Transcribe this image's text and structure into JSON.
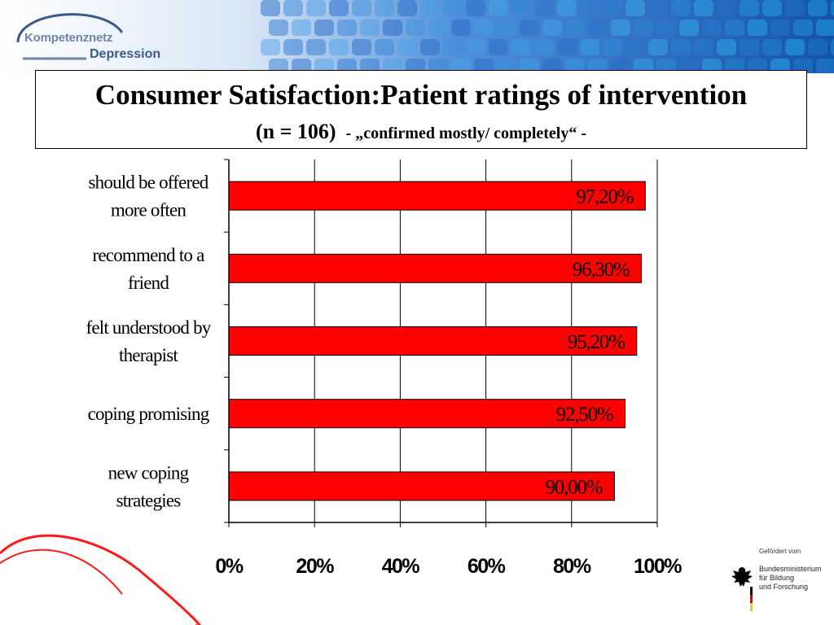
{
  "logo": {
    "line1": "Kompetenznetz",
    "line2": "Depression"
  },
  "title": {
    "main": "Consumer Satisfaction:Patient ratings of intervention",
    "n_label": "(n = 106)",
    "subtitle": "- „confirmed mostly/ completely“ -"
  },
  "footer": {
    "funded_by": "Gefördert vom",
    "ministry": "Bundesministerium\nfür Bildung\nund Forschung",
    "icon": "eagle-icon"
  },
  "colors": {
    "bar": "#ff0000",
    "bar_outline": "#000000",
    "banner": "#1e5fb0"
  },
  "chart_data": {
    "type": "bar",
    "orientation": "horizontal",
    "categories": [
      [
        "should be offered",
        "more often"
      ],
      [
        "recommend to a",
        "friend"
      ],
      [
        "felt understood by",
        "therapist"
      ],
      [
        "coping promising"
      ],
      [
        "new coping",
        "strategies"
      ]
    ],
    "values": [
      97.2,
      96.3,
      95.2,
      92.5,
      90.0
    ],
    "data_labels": [
      "97,20%",
      "96,30%",
      "95,20%",
      "92,50%",
      "90,00%"
    ],
    "x_ticks": [
      "0%",
      "20%",
      "40%",
      "60%",
      "80%",
      "100%"
    ],
    "xlim": [
      0,
      100
    ],
    "grid": "vertical",
    "legend": "none"
  }
}
